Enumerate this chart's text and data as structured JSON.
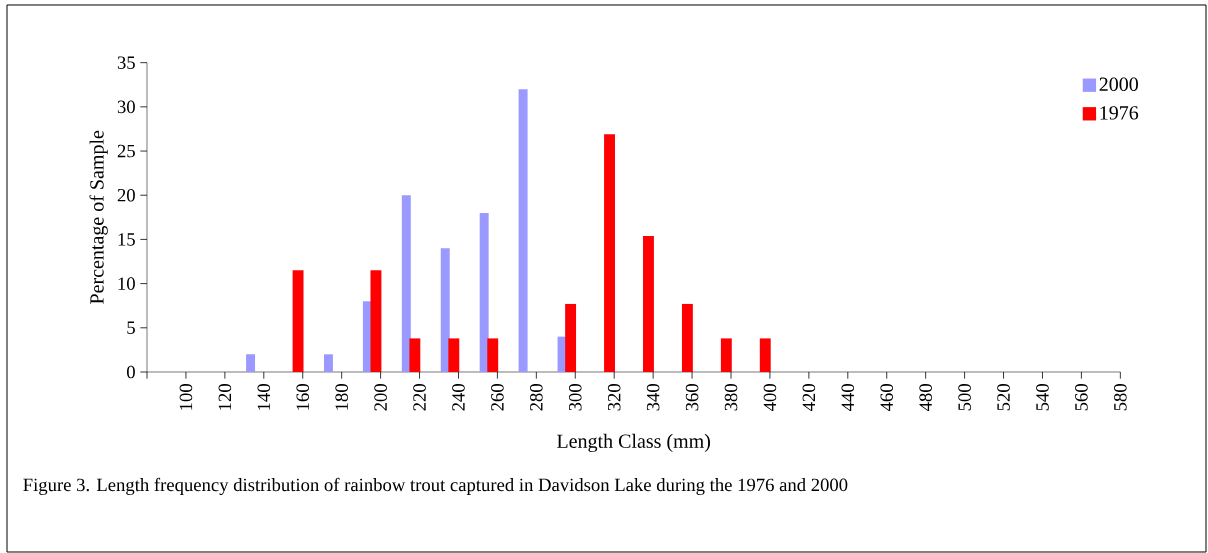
{
  "chart_data": {
    "type": "bar",
    "xlabel": "Length Class (mm)",
    "ylabel": "Percentage of Sample",
    "categories": [
      "100",
      "120",
      "140",
      "160",
      "180",
      "200",
      "220",
      "240",
      "260",
      "280",
      "300",
      "320",
      "340",
      "360",
      "380",
      "400",
      "420",
      "440",
      "460",
      "480",
      "500",
      "520",
      "540",
      "560",
      "580"
    ],
    "series": [
      {
        "name": "2000",
        "color": "#9999ff",
        "values": [
          0,
          0,
          2,
          0,
          2,
          8,
          20,
          14,
          18,
          32,
          4,
          0,
          0,
          0,
          0,
          0,
          0,
          0,
          0,
          0,
          0,
          0,
          0,
          0,
          0
        ]
      },
      {
        "name": "1976",
        "color": "#ff0000",
        "values": [
          0,
          0,
          0,
          11.5,
          0,
          11.5,
          3.8,
          3.8,
          3.8,
          0,
          7.7,
          26.9,
          15.4,
          7.7,
          3.8,
          3.8,
          0,
          0,
          0,
          0,
          0,
          0,
          0,
          0,
          0
        ]
      }
    ],
    "ylim": [
      0,
      35
    ],
    "yticks": [
      0,
      5,
      10,
      15,
      20,
      25,
      30,
      35
    ],
    "legend": "top right",
    "annotations": [
      "Figure 3. Length frequency distribution of rainbow trout captured in Davidson Lake during the 1976 and 2000"
    ]
  }
}
